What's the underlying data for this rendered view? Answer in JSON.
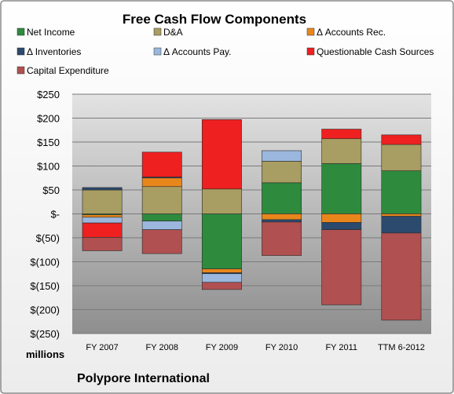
{
  "chart_data": {
    "type": "bar",
    "stacked": true,
    "title": "Free Cash Flow Components",
    "units_label": "millions",
    "company": "Polypore International",
    "categories": [
      "FY 2007",
      "FY 2008",
      "FY 2009",
      "FY 2010",
      "FY 2011",
      "TTM 6-2012"
    ],
    "ylim": [
      -250,
      250
    ],
    "yticks": [
      250,
      200,
      150,
      100,
      50,
      0,
      -50,
      -100,
      -150,
      -200,
      -250
    ],
    "ytick_labels": [
      "$250",
      "$200",
      "$150",
      "$100",
      "$50",
      "$-",
      "$(50)",
      "$(100)",
      "$(150)",
      "$(200)",
      "$(250)"
    ],
    "grid": true,
    "legend_position": "top",
    "series": [
      {
        "name": "Net Income",
        "color": "#2e8b3e",
        "values": [
          -2,
          -15,
          -115,
          65,
          105,
          90
        ]
      },
      {
        "name": "D&A",
        "color": "#a89d62",
        "values": [
          50,
          57,
          52,
          45,
          52,
          55
        ]
      },
      {
        "name": "Δ Accounts Rec.",
        "color": "#e8861c",
        "values": [
          -5,
          18,
          -8,
          -12,
          -18,
          -5
        ]
      },
      {
        "name": "Δ Inventories",
        "color": "#2b4a6e",
        "values": [
          5,
          2,
          -2,
          -5,
          -15,
          -35
        ]
      },
      {
        "name": "Δ Accounts Pay.",
        "color": "#9bb7dd",
        "values": [
          -12,
          -18,
          -18,
          22,
          0,
          0
        ]
      },
      {
        "name": "Questionable Cash Sources",
        "color": "#ee2020",
        "values": [
          -30,
          52,
          145,
          0,
          20,
          20
        ]
      },
      {
        "name": "Capital Expenditure",
        "color": "#b05050",
        "values": [
          -28,
          -50,
          -15,
          -70,
          -157,
          -182
        ]
      }
    ]
  }
}
